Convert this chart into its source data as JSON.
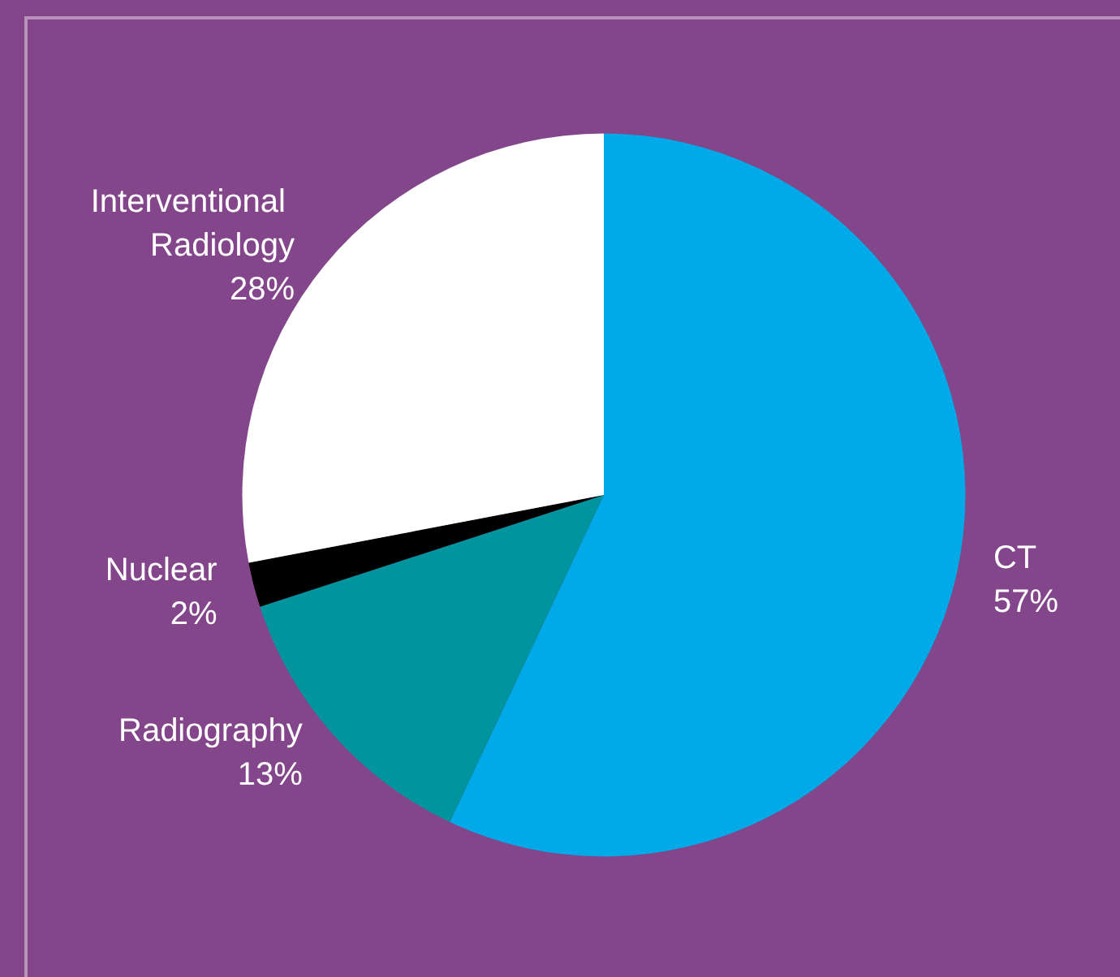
{
  "chart_data": {
    "type": "pie",
    "categories": [
      "CT",
      "Radiography",
      "Nuclear",
      "Interventional Radiology"
    ],
    "values": [
      57,
      13,
      2,
      28
    ],
    "colors": [
      "#00a9e8",
      "#00949e",
      "#000000",
      "#ffffff"
    ],
    "value_labels": [
      "57%",
      "13%",
      "2%",
      "28%"
    ],
    "legend": false
  }
}
